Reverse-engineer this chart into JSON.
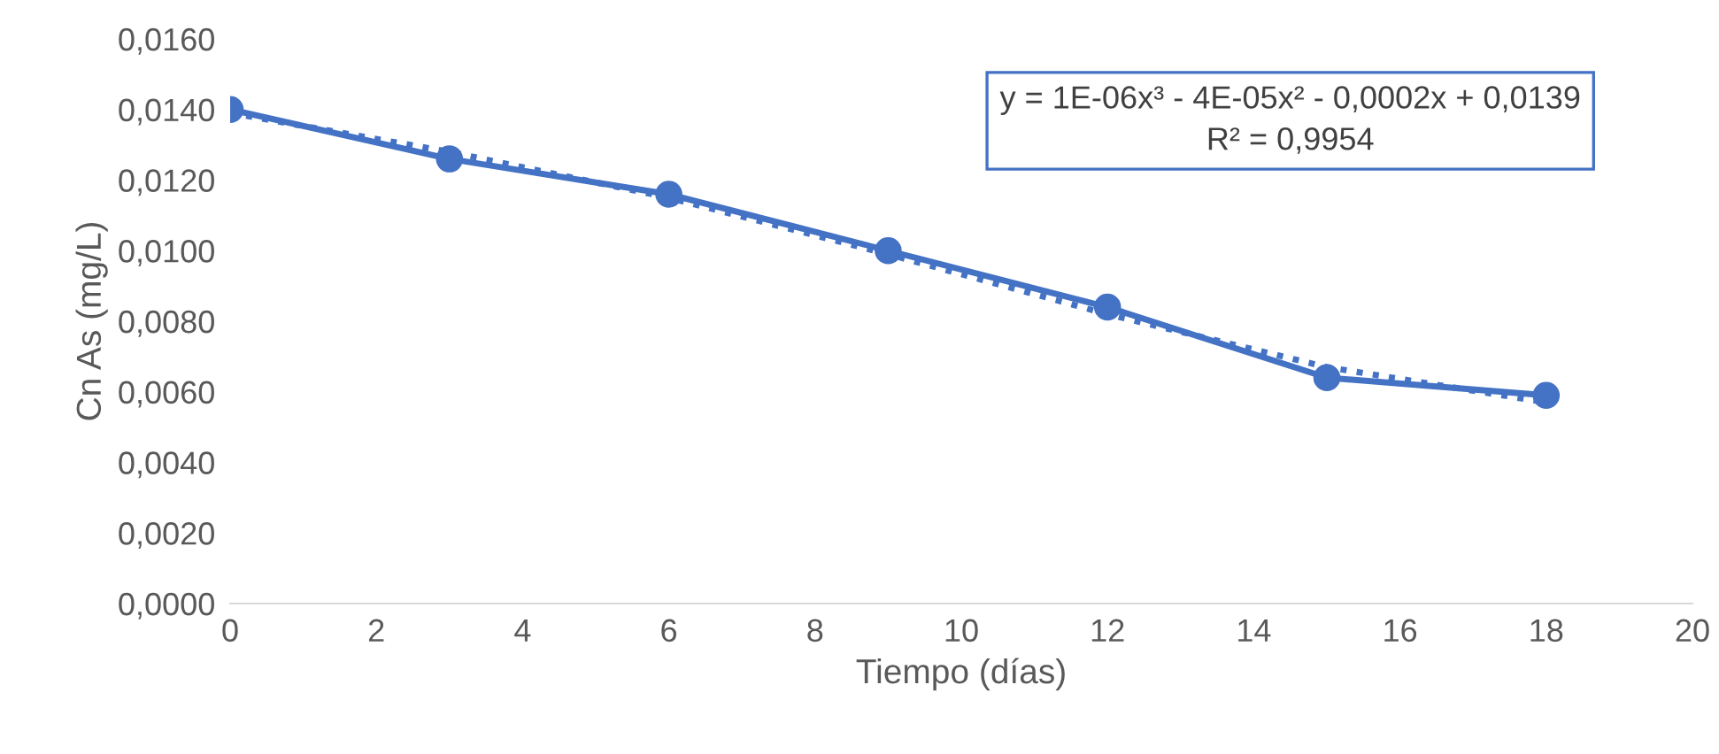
{
  "chart_data": {
    "type": "line",
    "xlabel": "Tiempo (días)",
    "ylabel": "Cn As (mg/L)",
    "x": [
      0,
      3,
      6,
      9,
      12,
      15,
      18
    ],
    "series": [
      {
        "color": "#4472c4",
        "values": [
          0.014,
          0.0126,
          0.0116,
          0.01,
          0.0084,
          0.0064,
          0.0059
        ],
        "marker": "circle",
        "line_style": "solid"
      },
      {
        "type": "line",
        "color": "#4472c4",
        "x": [
          0,
          3,
          6,
          9,
          12,
          15,
          18
        ],
        "values": [
          0.0139,
          0.0128,
          0.0115,
          0.0099,
          0.0082,
          0.0067,
          0.0057
        ],
        "marker": "none",
        "line_style": "dotted"
      }
    ],
    "xlim": [
      0,
      20
    ],
    "xticks": [
      0,
      2,
      4,
      6,
      8,
      10,
      12,
      14,
      16,
      18,
      20
    ],
    "ylim": [
      0,
      0.016
    ],
    "yticks": [
      {
        "value": 0,
        "label": "0,0000"
      },
      {
        "value": 0.002,
        "label": "0,0020"
      },
      {
        "value": 0.004,
        "label": "0,0040"
      },
      {
        "value": 0.006,
        "label": "0,0060"
      },
      {
        "value": 0.008,
        "label": "0,0080"
      },
      {
        "value": 0.01,
        "label": "0,0100"
      },
      {
        "value": 0.012,
        "label": "0,0120"
      },
      {
        "value": 0.014,
        "label": "0,0140"
      },
      {
        "value": 0.016,
        "label": "0,0160"
      }
    ],
    "annotations": [
      "y = 1E-06x³ - 4E-05x² - 0,0002x + 0,0139\nR² = 0,9954"
    ]
  }
}
